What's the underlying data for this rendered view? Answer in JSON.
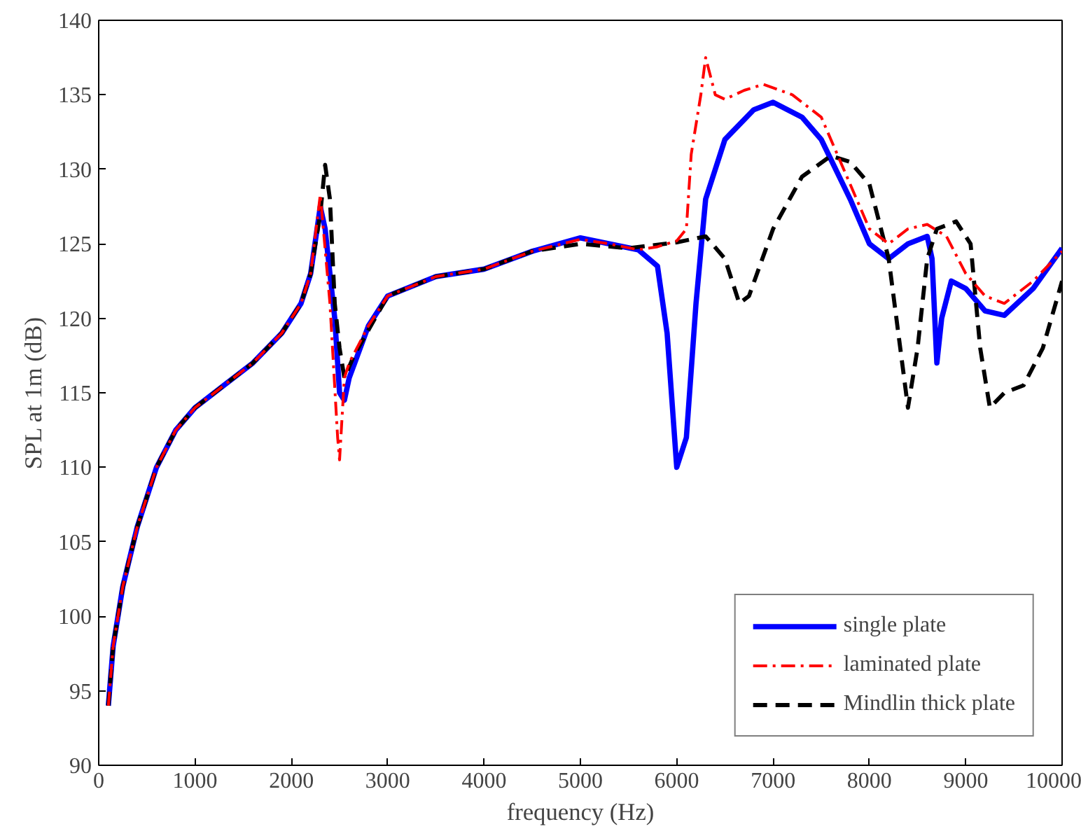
{
  "chart_data": {
    "type": "line",
    "xlabel": "frequency (Hz)",
    "ylabel": "SPL at 1m (dB)",
    "xlim": [
      0,
      10000
    ],
    "ylim": [
      90,
      140
    ],
    "xticks": [
      0,
      1000,
      2000,
      3000,
      4000,
      5000,
      6000,
      7000,
      8000,
      9000,
      10000
    ],
    "yticks": [
      90,
      95,
      100,
      105,
      110,
      115,
      120,
      125,
      130,
      135,
      140
    ],
    "grid": false,
    "legend": "bottom right",
    "marker": "none",
    "series": [
      {
        "name": "single plate",
        "color": "#0000ff",
        "line_style": "solid",
        "x": [
          100,
          150,
          250,
          400,
          600,
          800,
          1000,
          1300,
          1600,
          1900,
          2100,
          2200,
          2300,
          2350,
          2450,
          2500,
          2550,
          2600,
          2800,
          3000,
          3500,
          4000,
          4500,
          5000,
          5300,
          5600,
          5800,
          5900,
          6000,
          6100,
          6200,
          6300,
          6500,
          6800,
          7000,
          7300,
          7500,
          7800,
          8000,
          8200,
          8400,
          8600,
          8650,
          8700,
          8750,
          8850,
          9000,
          9200,
          9400,
          9700,
          10000
        ],
        "values": [
          94,
          98,
          102,
          106,
          110,
          112.5,
          114,
          115.5,
          117,
          119,
          121,
          123,
          127.5,
          126,
          120,
          115,
          114.5,
          116,
          119.5,
          121.5,
          122.8,
          123.3,
          124.5,
          125.4,
          125,
          124.6,
          123.5,
          119,
          110,
          112,
          121,
          128,
          132,
          134,
          134.5,
          133.5,
          132,
          128,
          125,
          124,
          125,
          125.5,
          124,
          117,
          120,
          122.5,
          122,
          120.5,
          120.2,
          122,
          124.7
        ]
      },
      {
        "name": "laminated plate",
        "color": "#ff0000",
        "line_style": "dashdot",
        "x": [
          100,
          150,
          250,
          400,
          600,
          800,
          1000,
          1300,
          1600,
          1900,
          2100,
          2200,
          2300,
          2400,
          2480,
          2500,
          2550,
          2600,
          2800,
          3000,
          3500,
          4000,
          4500,
          5000,
          5300,
          5600,
          5800,
          6000,
          6100,
          6150,
          6250,
          6300,
          6400,
          6500,
          6700,
          6900,
          7200,
          7500,
          7800,
          8000,
          8200,
          8400,
          8600,
          8800,
          9000,
          9200,
          9400,
          9700,
          10000
        ],
        "values": [
          94,
          98,
          102,
          106,
          110,
          112.5,
          114,
          115.5,
          117,
          119,
          121,
          123,
          128.3,
          121,
          112,
          110.5,
          116,
          117,
          119.5,
          121.5,
          122.8,
          123.3,
          124.5,
          125.3,
          125,
          124.6,
          124.8,
          125.2,
          126,
          131,
          135,
          137.5,
          135,
          134.7,
          135.3,
          135.7,
          135,
          133.5,
          129,
          126,
          125,
          126,
          126.3,
          125.5,
          123,
          121.5,
          121,
          122.5,
          124.5
        ]
      },
      {
        "name": "Mindlin thick plate",
        "color": "#000000",
        "line_style": "dashed",
        "x": [
          100,
          150,
          250,
          400,
          600,
          800,
          1000,
          1300,
          1600,
          1900,
          2100,
          2200,
          2300,
          2350,
          2400,
          2450,
          2500,
          2550,
          2650,
          3000,
          3500,
          4000,
          4500,
          5000,
          5500,
          6000,
          6300,
          6500,
          6650,
          6750,
          7000,
          7300,
          7600,
          7800,
          8000,
          8200,
          8300,
          8400,
          8500,
          8600,
          8700,
          8900,
          9050,
          9150,
          9250,
          9400,
          9600,
          9800,
          10000
        ],
        "values": [
          94,
          98,
          102,
          106,
          110,
          112.5,
          114,
          115.5,
          117,
          119,
          121,
          123,
          127,
          130.3,
          128,
          121,
          118,
          116,
          117.5,
          121.5,
          122.8,
          123.3,
          124.5,
          125,
          124.7,
          125.1,
          125.5,
          124,
          121,
          121.5,
          126,
          129.5,
          130.9,
          130.5,
          129,
          124,
          119,
          114,
          118,
          124,
          126,
          126.5,
          125,
          118,
          114,
          115,
          115.5,
          118,
          122.5
        ]
      }
    ]
  }
}
